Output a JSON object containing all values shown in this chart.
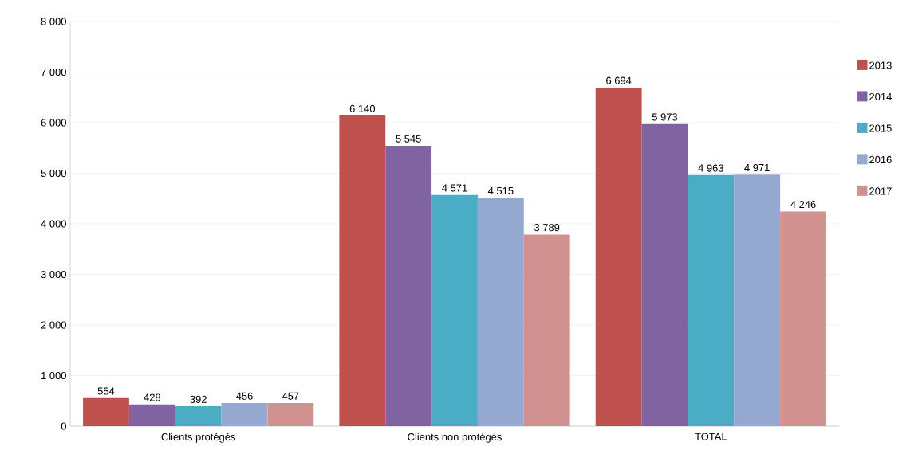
{
  "chart_data": {
    "type": "bar",
    "categories": [
      "Clients protégés",
      "Clients non protégés",
      "TOTAL"
    ],
    "series": [
      {
        "name": "2013",
        "color": "#c0504d",
        "values": [
          554,
          6140,
          6694
        ],
        "value_labels": [
          "554",
          "6 140",
          "6 694"
        ]
      },
      {
        "name": "2014",
        "color": "#8064a2",
        "values": [
          428,
          5545,
          5973
        ],
        "value_labels": [
          "428",
          "5 545",
          "5 973"
        ]
      },
      {
        "name": "2015",
        "color": "#4bacc6",
        "values": [
          392,
          4571,
          4963
        ],
        "value_labels": [
          "392",
          "4 571",
          "4 963"
        ]
      },
      {
        "name": "2016",
        "color": "#95a9d0",
        "values": [
          456,
          4515,
          4971
        ],
        "value_labels": [
          "456",
          "4 515",
          "4 971"
        ]
      },
      {
        "name": "2017",
        "color": "#d19190",
        "values": [
          457,
          3789,
          4246
        ],
        "value_labels": [
          "457",
          "3 789",
          "4 246"
        ]
      }
    ],
    "ylim": [
      0,
      8000
    ],
    "yticks": [
      0,
      {
        "value": 1000,
        "label": "1 000"
      },
      {
        "value": 2000,
        "label": "2 000"
      },
      {
        "value": 3000,
        "label": "3 000"
      },
      {
        "value": 4000,
        "label": "4 000"
      },
      {
        "value": 5000,
        "label": "5 000"
      },
      {
        "value": 6000,
        "label": "6 000"
      },
      {
        "value": 7000,
        "label": "7 000"
      },
      {
        "value": 8000,
        "label": "8 000"
      }
    ],
    "grid": "y",
    "legend": "right"
  }
}
